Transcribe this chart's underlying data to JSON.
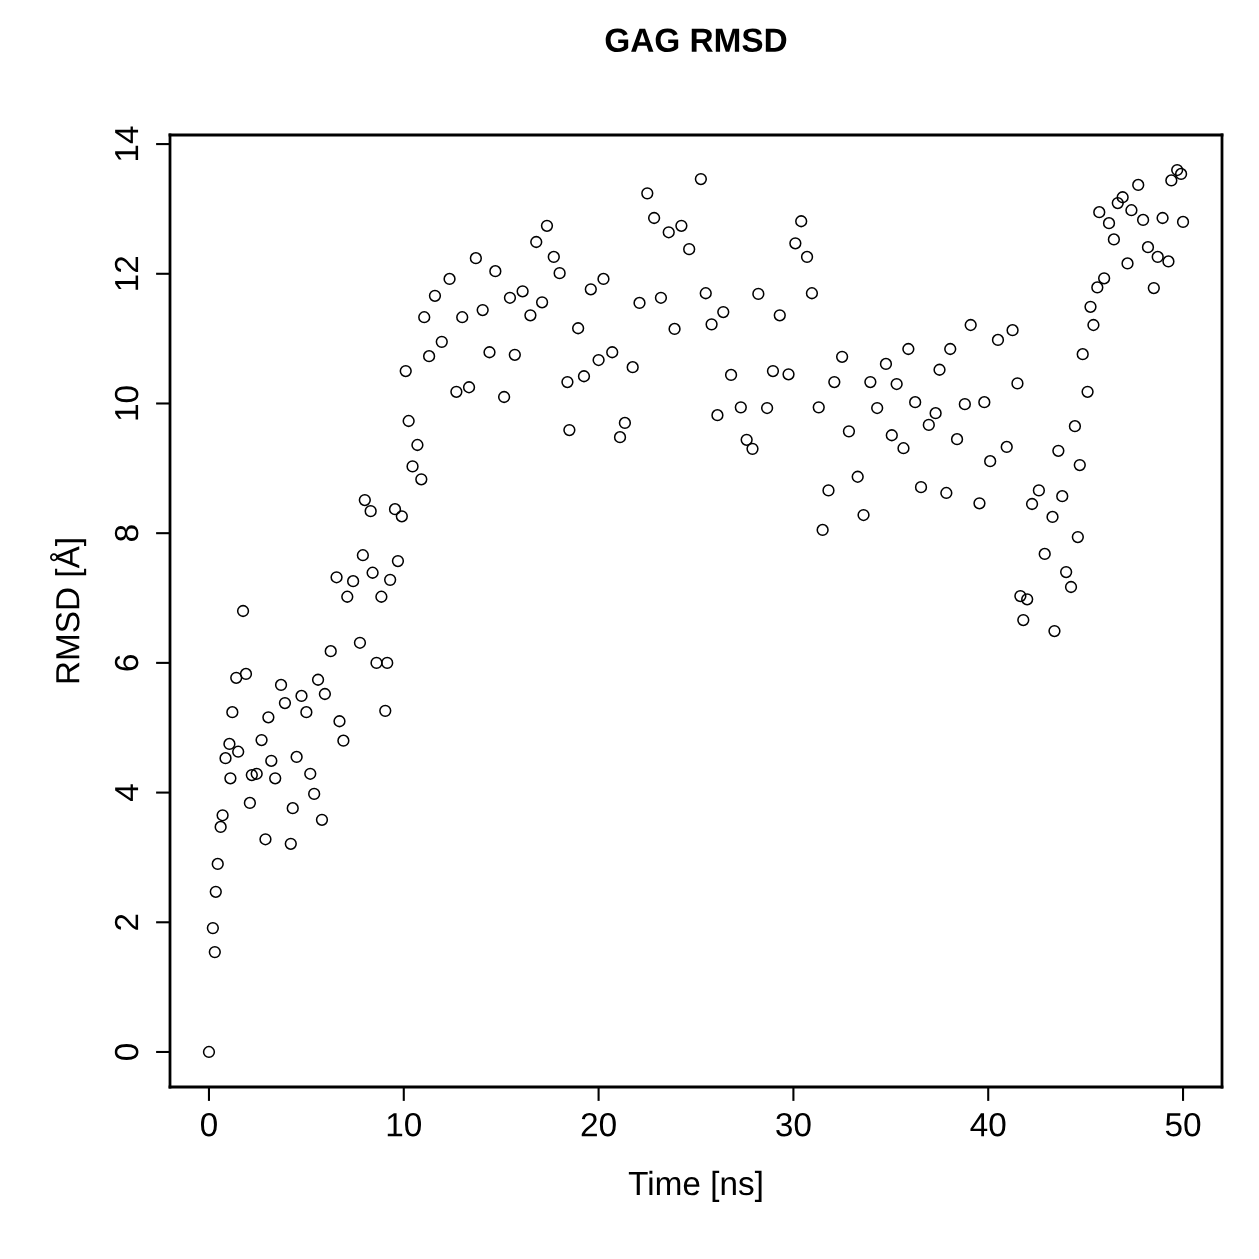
{
  "chart_data": {
    "type": "scatter",
    "title": "GAG RMSD",
    "xlabel": "Time [ns]",
    "ylabel": "RMSD [Å]",
    "xlim": [
      -2,
      52
    ],
    "ylim": [
      -0.54,
      14.14
    ],
    "xticks": [
      0,
      10,
      20,
      30,
      40,
      50
    ],
    "yticks": [
      0,
      2,
      4,
      6,
      8,
      10,
      12,
      14
    ],
    "grid": false,
    "legend": false,
    "marker": "circle",
    "series": [
      {
        "color": "#000000",
        "x": [
          0,
          0.2,
          0.3,
          0.35,
          0.45,
          0.6,
          0.7,
          0.85,
          1.05,
          1.1,
          1.2,
          1.4,
          1.5,
          1.75,
          1.9,
          2.1,
          2.2,
          2.45,
          2.7,
          2.9,
          3.05,
          3.2,
          3.4,
          3.7,
          3.9,
          4.2,
          4.3,
          4.5,
          4.75,
          5.0,
          5.2,
          5.4,
          5.6,
          5.8,
          5.95,
          6.25,
          6.55,
          6.7,
          6.9,
          7.1,
          7.4,
          7.75,
          7.9,
          8.0,
          8.3,
          8.4,
          8.6,
          8.85,
          9.05,
          9.15,
          9.3,
          9.55,
          9.7,
          9.9,
          10.1,
          10.25,
          10.45,
          10.7,
          10.9,
          11.05,
          11.3,
          11.6,
          11.95,
          12.35,
          12.7,
          13.0,
          13.35,
          13.7,
          14.05,
          14.4,
          14.7,
          15.15,
          15.45,
          15.7,
          16.1,
          16.5,
          16.8,
          17.1,
          17.35,
          17.7,
          18.0,
          18.4,
          18.5,
          18.95,
          19.25,
          19.6,
          20.0,
          20.25,
          20.7,
          21.1,
          21.35,
          21.75,
          22.1,
          22.5,
          22.85,
          23.2,
          23.6,
          23.9,
          24.25,
          24.65,
          25.25,
          25.5,
          25.8,
          26.1,
          26.4,
          26.8,
          27.3,
          27.6,
          27.9,
          28.2,
          28.65,
          28.95,
          29.3,
          29.75,
          30.1,
          30.4,
          30.7,
          30.95,
          31.3,
          31.5,
          31.8,
          32.1,
          32.5,
          32.85,
          33.3,
          33.6,
          33.95,
          34.3,
          34.75,
          35.05,
          35.3,
          35.65,
          35.9,
          36.25,
          36.55,
          36.95,
          37.3,
          37.5,
          37.85,
          38.05,
          38.4,
          38.8,
          39.1,
          39.55,
          39.8,
          40.1,
          40.5,
          40.95,
          41.25,
          41.5,
          41.65,
          41.8,
          42.0,
          42.25,
          42.6,
          42.9,
          43.3,
          43.4,
          43.6,
          43.8,
          44.0,
          44.25,
          44.45,
          44.6,
          44.7,
          44.85,
          45.1,
          45.25,
          45.4,
          45.6,
          45.7,
          45.95,
          46.2,
          46.45,
          46.65,
          46.9,
          47.15,
          47.35,
          47.7,
          47.95,
          48.2,
          48.5,
          48.7,
          48.95,
          49.25,
          49.4,
          49.7,
          49.9,
          50.0
        ],
        "values": [
          0,
          1.91,
          1.54,
          2.47,
          2.9,
          3.47,
          3.65,
          4.53,
          4.75,
          4.22,
          5.24,
          5.77,
          4.63,
          6.8,
          5.83,
          3.84,
          4.27,
          4.29,
          4.81,
          3.28,
          5.16,
          4.49,
          4.22,
          5.66,
          5.38,
          3.21,
          3.76,
          4.55,
          5.49,
          5.24,
          4.29,
          3.98,
          5.74,
          3.58,
          5.52,
          6.18,
          7.32,
          5.1,
          4.8,
          7.02,
          7.26,
          6.31,
          7.66,
          8.51,
          8.34,
          7.39,
          6.0,
          7.02,
          5.26,
          6.0,
          7.28,
          8.37,
          7.57,
          8.26,
          10.5,
          9.73,
          9.03,
          9.36,
          8.83,
          11.33,
          10.73,
          11.66,
          10.95,
          11.92,
          10.18,
          11.33,
          10.25,
          12.24,
          11.44,
          10.79,
          12.04,
          10.1,
          11.63,
          10.75,
          11.73,
          11.36,
          12.49,
          11.56,
          12.74,
          12.26,
          12.01,
          10.33,
          9.59,
          11.16,
          10.42,
          11.76,
          10.67,
          11.92,
          10.79,
          9.48,
          9.7,
          10.56,
          11.55,
          13.24,
          12.86,
          11.63,
          12.64,
          11.15,
          12.74,
          12.38,
          13.46,
          11.7,
          11.22,
          9.82,
          11.41,
          10.44,
          9.94,
          9.44,
          9.3,
          11.69,
          9.93,
          10.5,
          11.36,
          10.45,
          12.47,
          12.81,
          12.26,
          11.7,
          9.94,
          8.05,
          8.66,
          10.33,
          10.72,
          9.57,
          8.87,
          8.28,
          10.33,
          9.93,
          10.61,
          9.51,
          10.3,
          9.31,
          10.84,
          10.02,
          8.71,
          9.67,
          9.85,
          10.52,
          8.62,
          10.84,
          9.45,
          9.99,
          11.21,
          8.46,
          10.02,
          9.11,
          10.98,
          9.33,
          11.13,
          10.31,
          7.03,
          6.66,
          6.98,
          8.45,
          8.66,
          7.68,
          8.25,
          6.49,
          9.27,
          8.57,
          7.4,
          7.17,
          9.65,
          7.94,
          9.05,
          10.76,
          10.18,
          11.49,
          11.21,
          11.79,
          12.95,
          11.93,
          12.78,
          12.53,
          13.09,
          13.18,
          12.16,
          12.98,
          13.37,
          12.83,
          12.41,
          11.78,
          12.26,
          12.86,
          12.19,
          13.44,
          13.6,
          13.54,
          12.8
        ]
      }
    ]
  }
}
